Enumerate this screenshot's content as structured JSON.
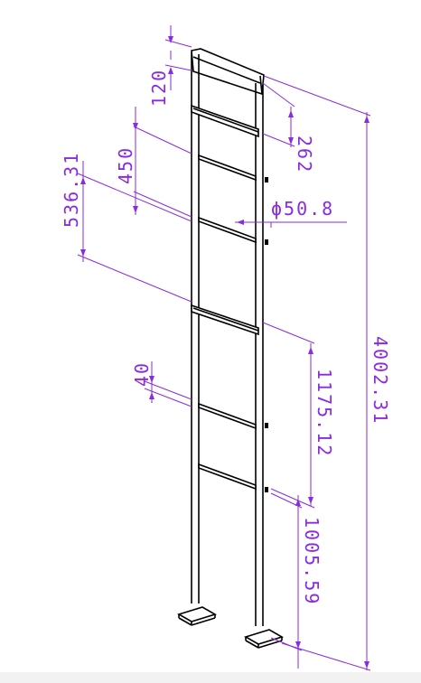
{
  "dimensions": {
    "top_rail_height": "120",
    "first_rung_spacing": "262",
    "rung_spacing": "450",
    "offset": "536.31",
    "post_diameter": "ϕ50.8",
    "rung_thickness": "40",
    "mid_span": "1175.12",
    "lower_span": "1005.59",
    "total_height": "4002.31"
  },
  "colors": {
    "dimension": "#8a2be2",
    "outline": "#000000"
  }
}
